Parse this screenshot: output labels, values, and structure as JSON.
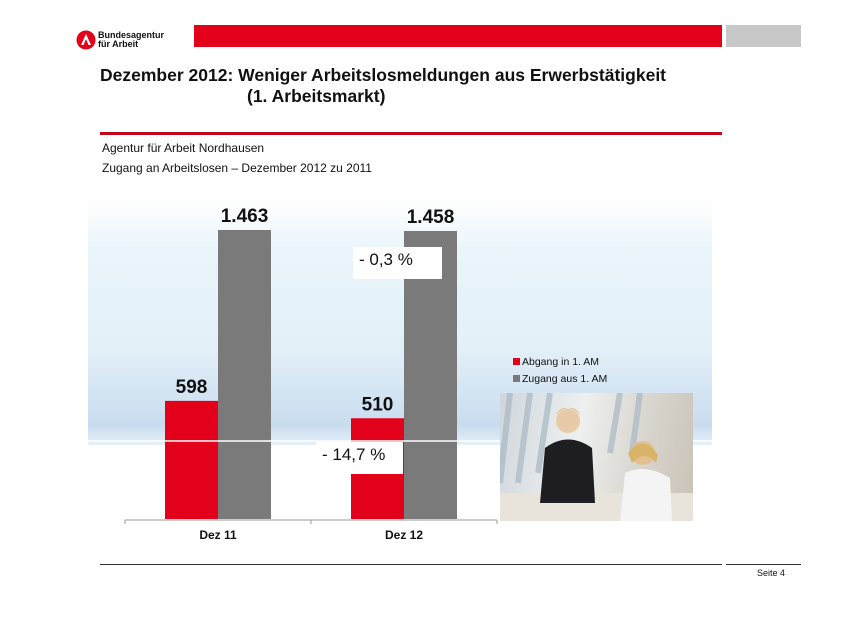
{
  "header": {
    "logo_text_1": "Bundesagentur",
    "logo_text_2": "für Arbeit",
    "brand_color": "#e2001a"
  },
  "title_line1": "Dezember 2012: Weniger Arbeitslosmeldungen aus Erwerbstätigkeit",
  "title_line2": "(1. Arbeitsmarkt)",
  "subtitle1": "Agentur für Arbeit Nordhausen",
  "subtitle2": "Zugang an Arbeitslosen – Dezember 2012 zu 2011",
  "chart_data": {
    "type": "bar",
    "categories": [
      "Dez 11",
      "Dez 12"
    ],
    "series": [
      {
        "name": "Abgang in 1. AM",
        "color": "#e2001a",
        "values": [
          598,
          510
        ],
        "labels": [
          "598",
          "510"
        ]
      },
      {
        "name": "Zugang aus 1. AM",
        "color": "#7a7a7a",
        "values": [
          1463,
          1458
        ],
        "labels": [
          "1.463",
          "1.458"
        ]
      }
    ],
    "annotations": [
      "- 0,3 %",
      "- 14,7 %"
    ],
    "legend": "right",
    "grid": false
  },
  "footer": {
    "page": "Seite 4"
  }
}
